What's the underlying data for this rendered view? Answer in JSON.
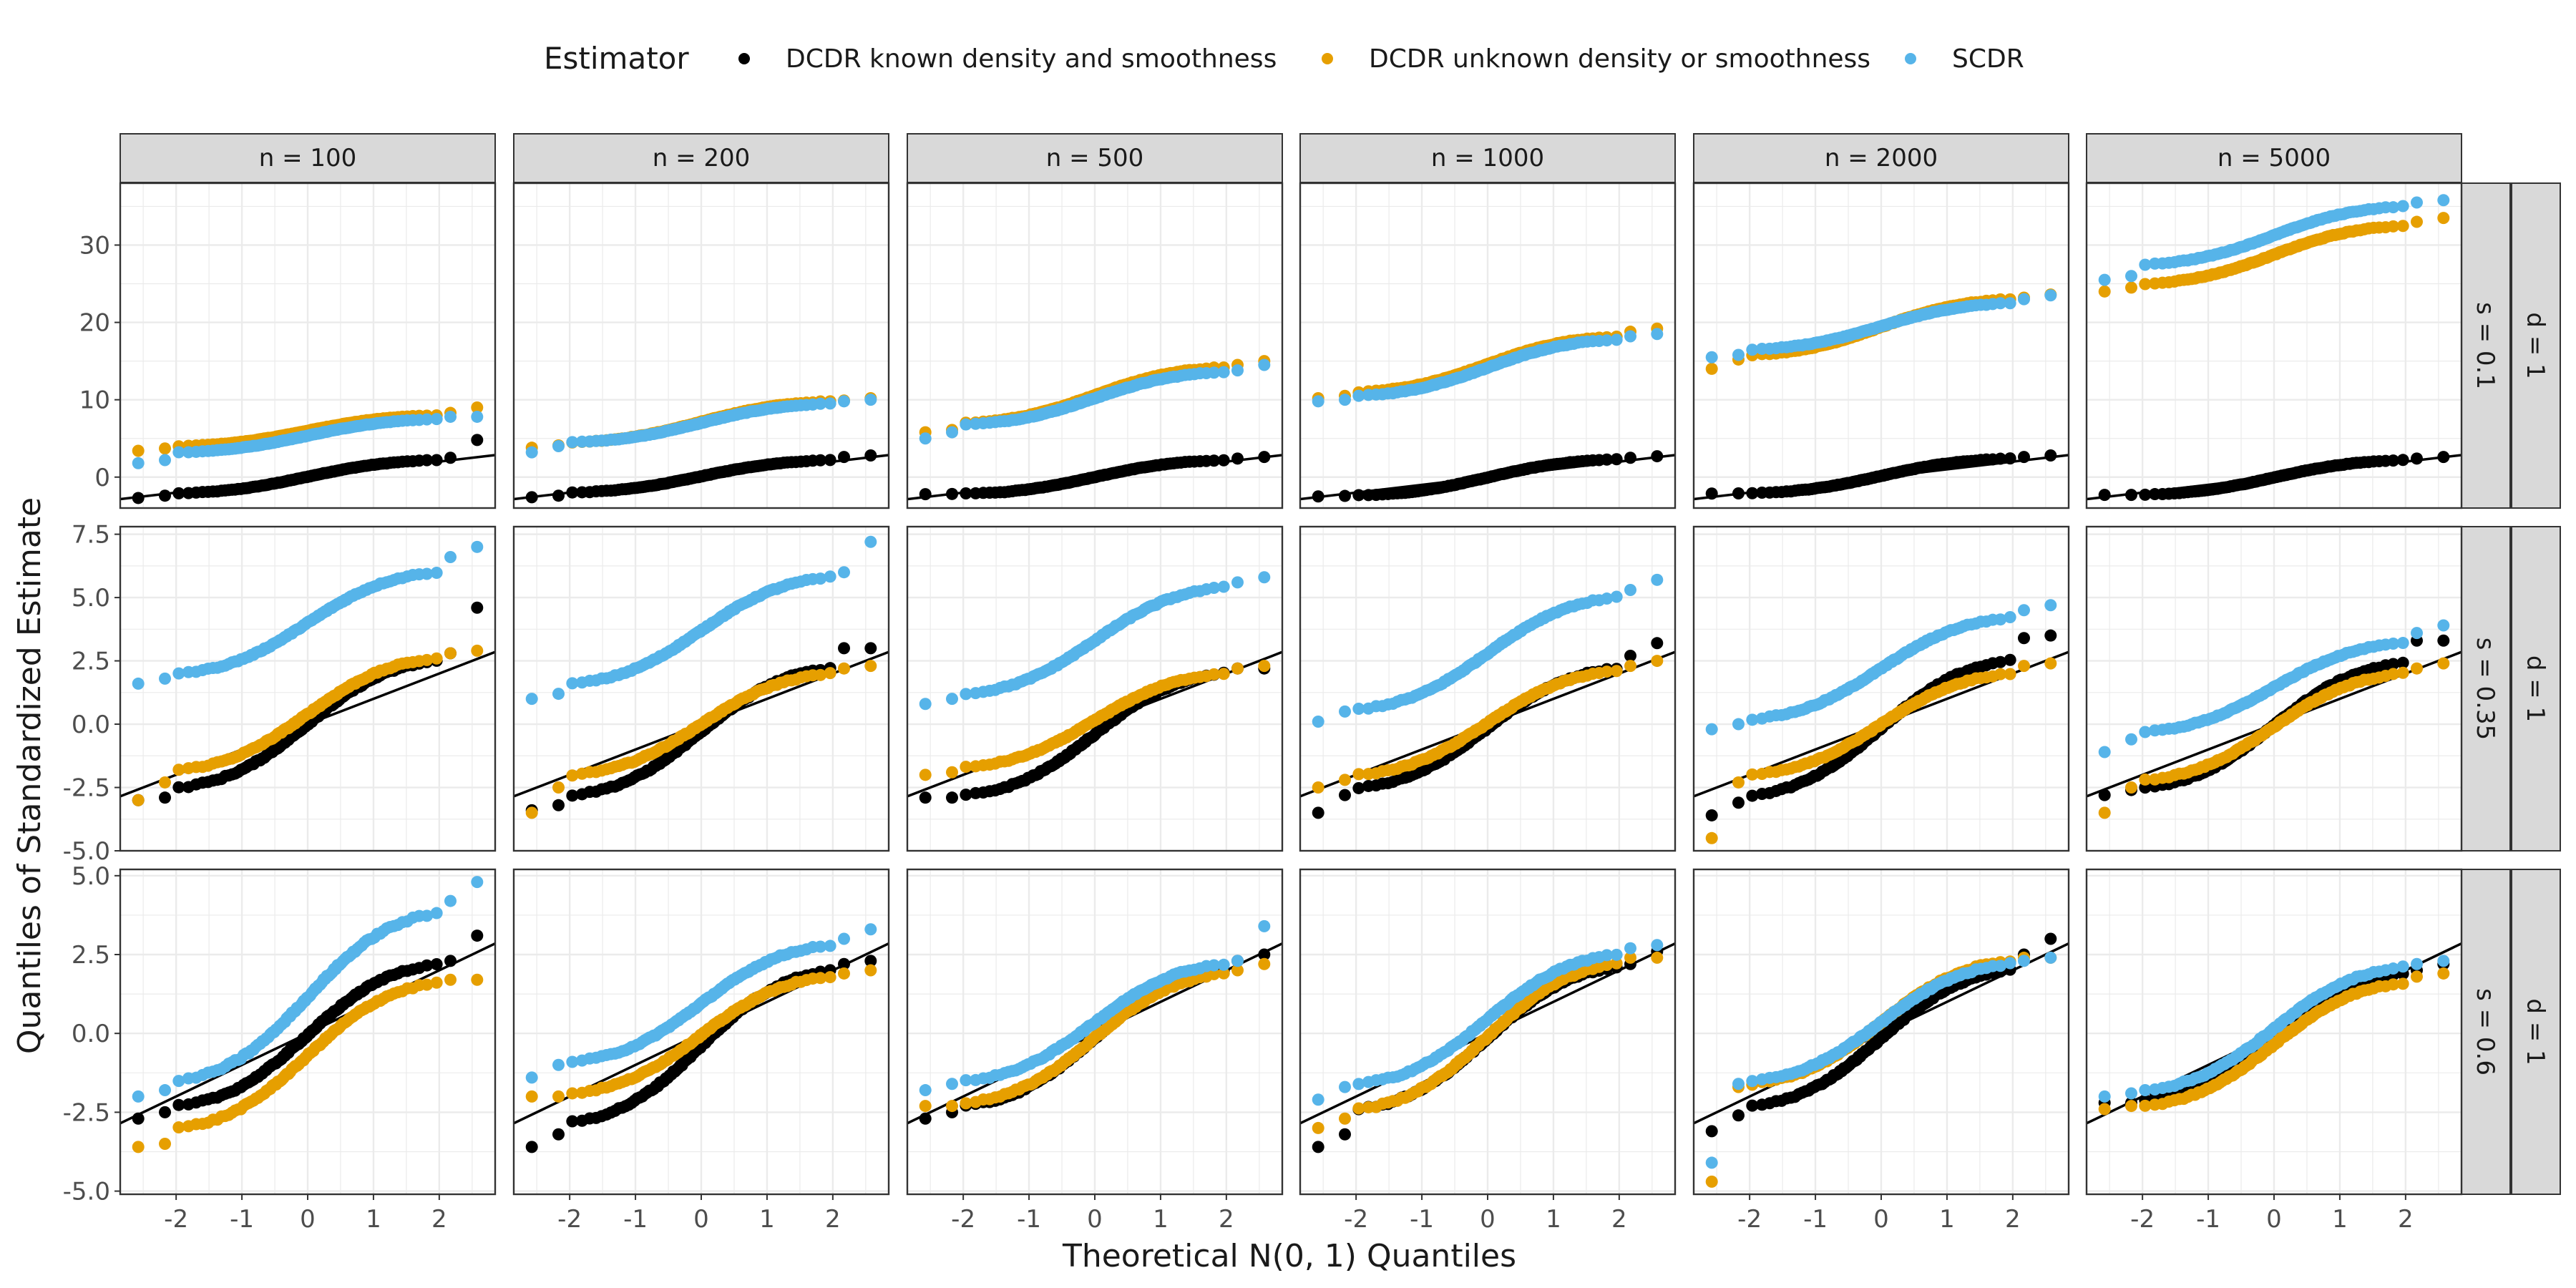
{
  "figure": {
    "xlabel": "Theoretical N(0, 1) Quantiles",
    "ylabel": "Quantiles of Standardized Estimate"
  },
  "legend": {
    "title": "Estimator",
    "placement": "top",
    "items": [
      {
        "label": "DCDR known density and smoothness",
        "color": "#000000"
      },
      {
        "label": "DCDR unknown density or smoothness",
        "color": "#E69F00"
      },
      {
        "label": "SCDR",
        "color": "#56B4E9"
      }
    ]
  },
  "facets": {
    "columns": [
      "n = 100",
      "n = 200",
      "n = 500",
      "n = 1000",
      "n = 2000",
      "n = 5000"
    ],
    "rows": [
      {
        "s_label": "s = 0.1",
        "d_label": "d = 1"
      },
      {
        "s_label": "s = 0.35",
        "d_label": "d = 1"
      },
      {
        "s_label": "s = 0.6",
        "d_label": "d = 1"
      }
    ]
  },
  "chart_data": {
    "type": "scatter",
    "subtype": "qq-plot faceted grid",
    "x_ticks": [
      "-2",
      "-1",
      "0",
      "1",
      "2"
    ],
    "xlim": [
      -2.85,
      2.85
    ],
    "reference_line": {
      "slope": 1,
      "intercept": 0
    },
    "grid": true,
    "rows": [
      {
        "ylim": [
          -4,
          38
        ],
        "y_ticks": [
          "0",
          "10",
          "20",
          "30"
        ],
        "y_tick_values": [
          0,
          10,
          20,
          30
        ],
        "series_endpoints": {
          "DCDR known density and smoothness": [
            [
              -2.7,
              -2.4,
              -2.1
            ],
            [
              -2.6,
              -2.4,
              -2.0
            ],
            [
              -2.0,
              -2.1,
              -2.2
            ],
            [
              -2.3,
              -2.5,
              -2.4
            ],
            [
              -2.0,
              -2.1,
              -2.1
            ],
            [
              -2.3,
              -2.2,
              -2.3
            ]
          ],
          "DCDR unknown density or smoothness": [
            [
              3.4,
              3.7,
              4.0
            ],
            [
              3.8,
              4.1,
              4.5
            ],
            [
              5.8,
              6.1,
              7.0
            ],
            [
              10.2,
              10.5,
              11.0
            ],
            [
              14.0,
              15.2,
              15.8
            ],
            [
              24.0,
              24.5,
              25.0
            ]
          ],
          "SCDR": [
            [
              1.8,
              2.2,
              3.2
            ],
            [
              3.2,
              4.0,
              4.5
            ],
            [
              5.0,
              5.8,
              6.8
            ],
            [
              9.8,
              10.0,
              10.5
            ],
            [
              15.8,
              15.5,
              16.5
            ],
            [
              25.5,
              26.0,
              27.5
            ]
          ]
        },
        "series_upper": {
          "DCDR known density and smoothness": [
            [
              2.2,
              2.5,
              4.8
            ],
            [
              2.2,
              2.6,
              2.8
            ],
            [
              2.2,
              2.4,
              2.6
            ],
            [
              2.3,
              2.5,
              2.7
            ],
            [
              2.4,
              2.6,
              2.8
            ],
            [
              2.2,
              2.4,
              2.6
            ]
          ],
          "DCDR unknown density or smoothness": [
            [
              8.0,
              8.3,
              9.0
            ],
            [
              9.8,
              9.9,
              10.2
            ],
            [
              14.2,
              14.5,
              15.0
            ],
            [
              18.2,
              18.8,
              19.2
            ],
            [
              23.0,
              23.2,
              23.6
            ],
            [
              32.5,
              33.0,
              33.5
            ]
          ],
          "SCDR": [
            [
              7.5,
              7.8,
              7.8
            ],
            [
              9.5,
              9.8,
              10.0
            ],
            [
              13.6,
              13.8,
              14.5
            ],
            [
              17.8,
              18.2,
              18.5
            ],
            [
              22.5,
              23.0,
              23.5
            ],
            [
              35.0,
              35.5,
              35.8
            ]
          ]
        }
      },
      {
        "ylim": [
          -5,
          7.8
        ],
        "y_ticks": [
          "-5.0",
          "-2.5",
          "0.0",
          "2.5",
          "5.0",
          "7.5"
        ],
        "y_tick_values": [
          -5,
          -2.5,
          0,
          2.5,
          5,
          7.5
        ],
        "series_endpoints": {
          "DCDR known density and smoothness": [
            [
              -3.0,
              -2.9,
              -2.5
            ],
            [
              -3.2,
              -3.4,
              -2.8
            ],
            [
              -2.9,
              -2.9,
              -2.8
            ],
            [
              -3.5,
              -2.8,
              -2.5
            ],
            [
              -3.6,
              -3.1,
              -2.8
            ],
            [
              -2.8,
              -2.6,
              -2.5
            ]
          ],
          "DCDR unknown density or smoothness": [
            [
              -3.0,
              -2.3,
              -1.8
            ],
            [
              -3.5,
              -2.5,
              -2.0
            ],
            [
              -2.0,
              -1.9,
              -1.7
            ],
            [
              -2.5,
              -2.2,
              -2.0
            ],
            [
              -4.5,
              -2.3,
              -2.0
            ],
            [
              -3.5,
              -2.5,
              -2.2
            ]
          ],
          "SCDR": [
            [
              1.6,
              1.8,
              2.0
            ],
            [
              1.0,
              1.2,
              1.6
            ],
            [
              0.8,
              1.0,
              1.2
            ],
            [
              0.1,
              0.5,
              0.6
            ],
            [
              -0.2,
              0.0,
              0.2
            ],
            [
              -1.1,
              -0.6,
              -0.3
            ]
          ]
        },
        "series_upper": {
          "DCDR known density and smoothness": [
            [
              2.5,
              2.8,
              4.6
            ],
            [
              2.2,
              3.0,
              3.0
            ],
            [
              2.0,
              2.2,
              2.2
            ],
            [
              2.2,
              2.7,
              3.2
            ],
            [
              2.5,
              3.4,
              3.5
            ],
            [
              2.4,
              3.3,
              3.3
            ]
          ],
          "DCDR unknown density or smoothness": [
            [
              2.6,
              2.8,
              2.9
            ],
            [
              2.0,
              2.2,
              2.3
            ],
            [
              2.0,
              2.2,
              2.3
            ],
            [
              2.1,
              2.3,
              2.5
            ],
            [
              2.0,
              2.3,
              2.4
            ],
            [
              2.0,
              2.2,
              2.4
            ]
          ],
          "SCDR": [
            [
              6.0,
              6.6,
              7.0
            ],
            [
              5.8,
              6.0,
              7.2
            ],
            [
              5.4,
              5.6,
              5.8
            ],
            [
              5.0,
              5.3,
              5.7
            ],
            [
              4.2,
              4.5,
              4.7
            ],
            [
              3.2,
              3.6,
              3.9
            ]
          ]
        }
      },
      {
        "ylim": [
          -5.1,
          5.2
        ],
        "y_ticks": [
          "-5.0",
          "-2.5",
          "0.0",
          "2.5",
          "5.0"
        ],
        "y_tick_values": [
          -5,
          -2.5,
          0,
          2.5,
          5
        ],
        "series_endpoints": {
          "DCDR known density and smoothness": [
            [
              -2.7,
              -2.5,
              -2.3
            ],
            [
              -3.6,
              -3.2,
              -2.8
            ],
            [
              -2.7,
              -2.5,
              -2.3
            ],
            [
              -3.6,
              -3.2,
              -2.4
            ],
            [
              -3.1,
              -2.6,
              -2.3
            ],
            [
              -2.2,
              -2.2,
              -2.1
            ]
          ],
          "DCDR unknown density or smoothness": [
            [
              -3.6,
              -3.5,
              -3.0
            ],
            [
              -2.0,
              -2.0,
              -1.9
            ],
            [
              -2.3,
              -2.3,
              -2.2
            ],
            [
              -3.0,
              -2.7,
              -2.4
            ],
            [
              -4.7,
              -1.7,
              -1.6
            ],
            [
              -2.4,
              -2.3,
              -2.3
            ]
          ],
          "SCDR": [
            [
              -2.0,
              -1.8,
              -1.5
            ],
            [
              -1.4,
              -1.0,
              -0.9
            ],
            [
              -1.8,
              -1.6,
              -1.5
            ],
            [
              -2.1,
              -1.7,
              -1.6
            ],
            [
              -4.1,
              -1.6,
              -1.5
            ],
            [
              -2.0,
              -1.9,
              -1.8
            ]
          ]
        },
        "series_upper": {
          "DCDR known density and smoothness": [
            [
              2.2,
              2.3,
              3.1
            ],
            [
              2.0,
              2.2,
              2.3
            ],
            [
              2.0,
              2.3,
              2.5
            ],
            [
              2.1,
              2.2,
              2.6
            ],
            [
              2.0,
              2.5,
              3.0
            ],
            [
              1.9,
              2.0,
              2.2
            ]
          ],
          "DCDR unknown density or smoothness": [
            [
              1.6,
              1.7,
              1.7
            ],
            [
              1.8,
              1.9,
              2.0
            ],
            [
              1.9,
              2.0,
              2.2
            ],
            [
              2.2,
              2.4,
              2.4
            ],
            [
              2.3,
              2.4,
              2.4
            ],
            [
              1.6,
              1.8,
              1.9
            ]
          ],
          "SCDR": [
            [
              3.8,
              4.2,
              4.8
            ],
            [
              2.8,
              3.0,
              3.3
            ],
            [
              2.2,
              2.3,
              3.4
            ],
            [
              2.5,
              2.7,
              2.8
            ],
            [
              2.2,
              2.3,
              2.4
            ],
            [
              2.1,
              2.2,
              2.3
            ]
          ]
        }
      }
    ]
  }
}
